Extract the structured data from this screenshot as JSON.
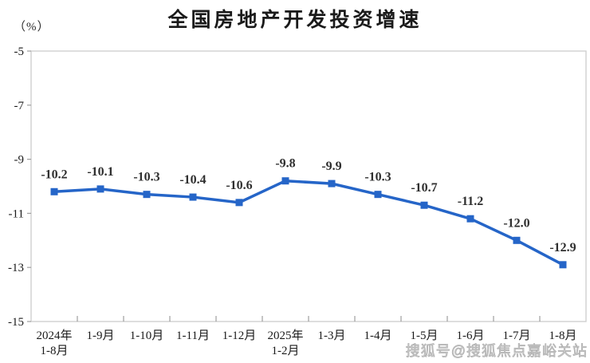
{
  "title": "全国房地产开发投资增速",
  "y_axis_unit": "（%）",
  "watermark": "搜狐号@搜狐焦点嘉峪关站",
  "colors": {
    "line": "#2565c8",
    "marker": "#2565c8",
    "data_label": "#2e2e2e",
    "axis_border": "#d0d0d0",
    "tick": "#9e9e9e",
    "axis_label": "#1a1a1a",
    "title": "#1a1a1a",
    "watermark": "#cfcfcf"
  },
  "chart_data": {
    "type": "line",
    "title": "全国房地产开发投资增速",
    "ylabel": "（%）",
    "xlabel": "",
    "categories": [
      "2024年\n1-8月",
      "1-9月",
      "1-10月",
      "1-11月",
      "1-12月",
      "2025年\n1-2月",
      "1-3月",
      "1-4月",
      "1-5月",
      "1-6月",
      "1-7月",
      "1-8月"
    ],
    "values": [
      -10.2,
      -10.1,
      -10.3,
      -10.4,
      -10.6,
      -9.8,
      -9.9,
      -10.3,
      -10.7,
      -11.2,
      -12.0,
      -12.9
    ],
    "labels": [
      "-10.2",
      "-10.1",
      "-10.3",
      "-10.4",
      "-10.6",
      "-9.8",
      "-9.9",
      "-10.3",
      "-10.7",
      "-11.2",
      "-12.0",
      "-12.9"
    ],
    "ylim": [
      -15,
      -5
    ],
    "yticks": [
      -5,
      -7,
      -9,
      -11,
      -13,
      -15
    ],
    "grid": false,
    "legend": "none",
    "marker": "square",
    "data_labels": true
  }
}
